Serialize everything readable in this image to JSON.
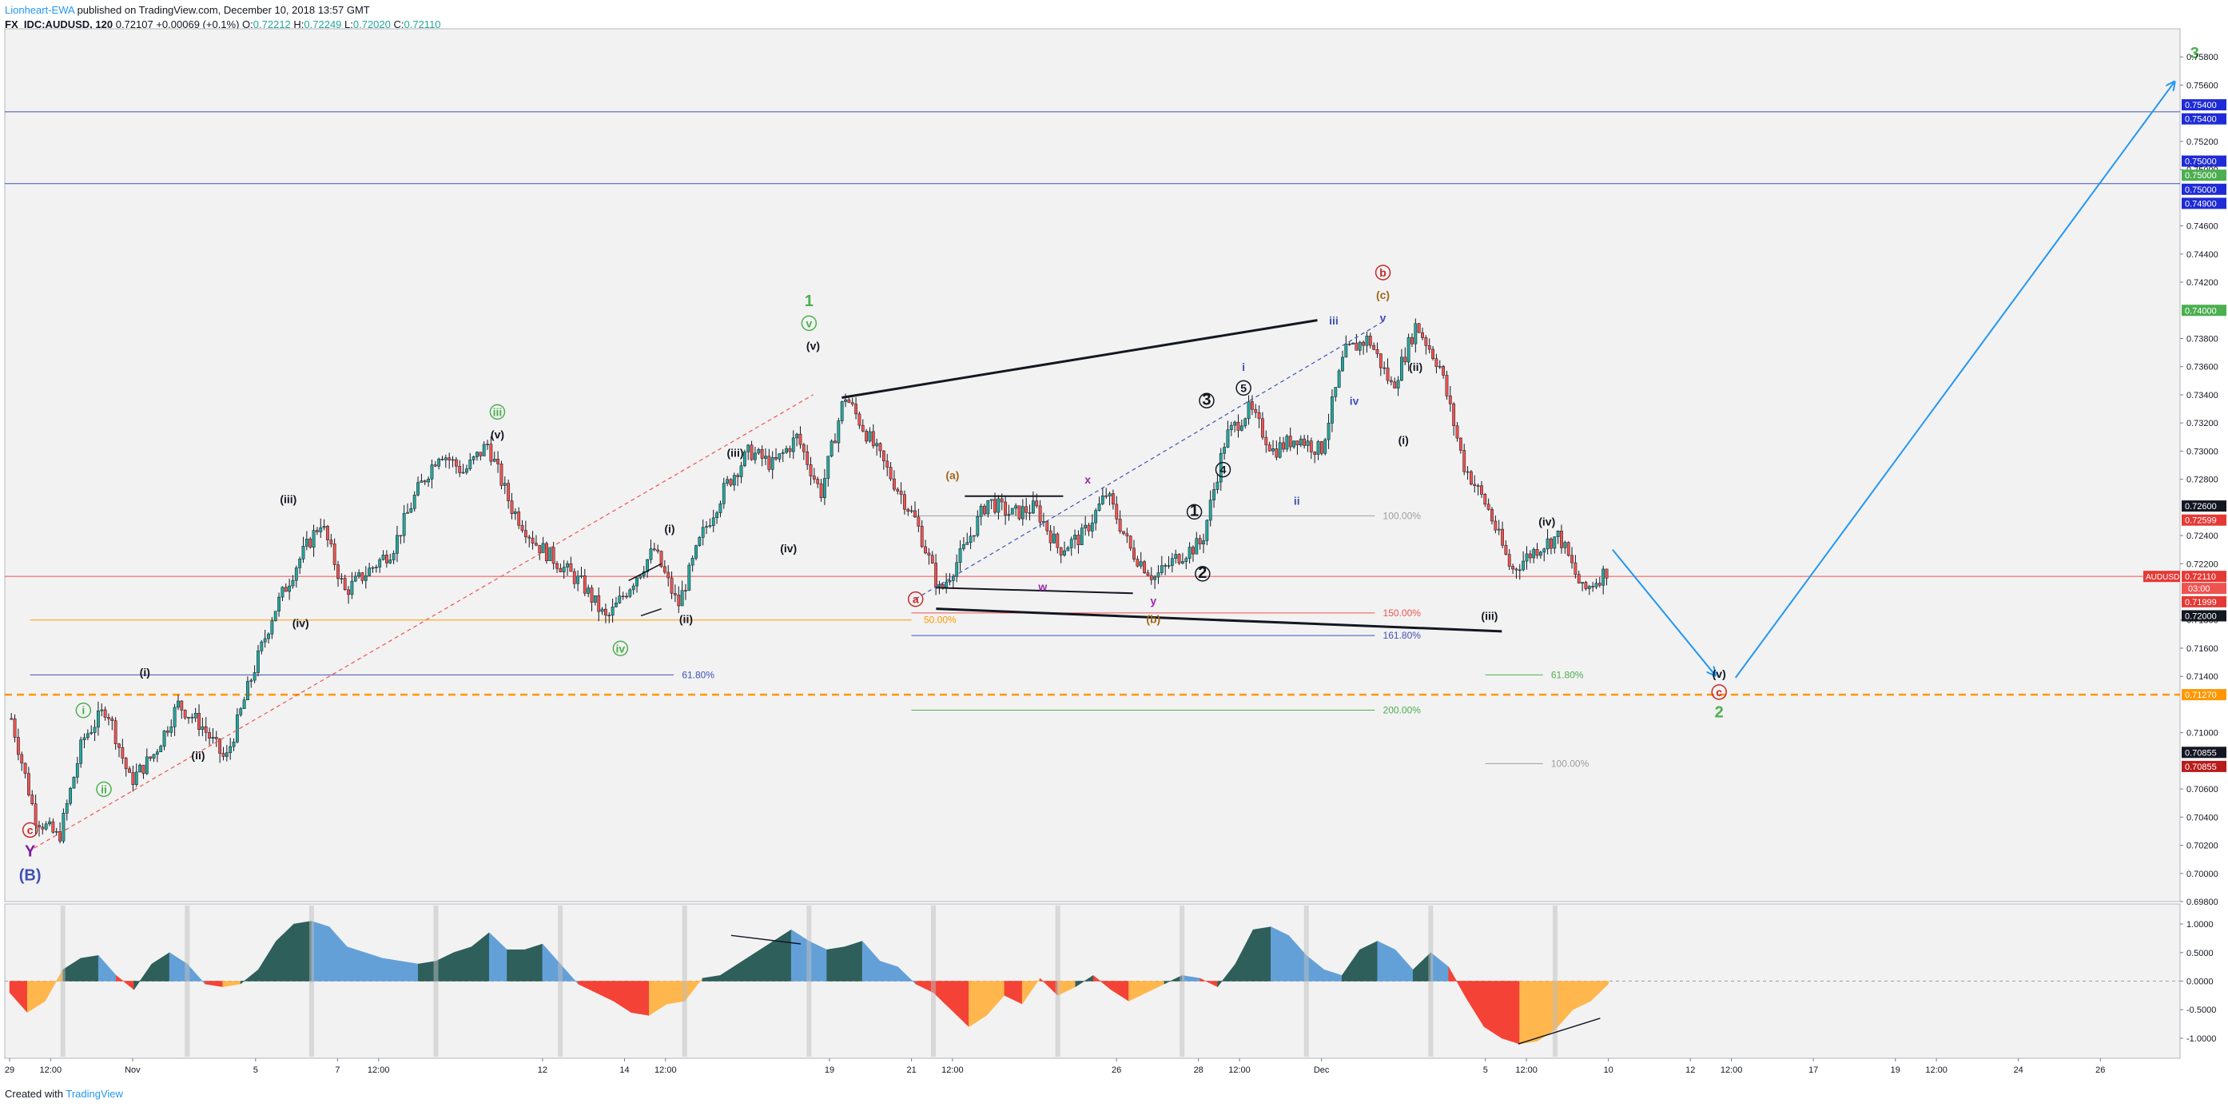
{
  "header": {
    "author": "Lionheart-EWA",
    "published": "published on TradingView.com, December 10, 2018 13:57 GMT",
    "symbol": "FX_IDC:AUDUSD, 120",
    "price": "0.72107",
    "change": "+0.00069 (+0.1%)",
    "o_label": "O:",
    "o": "0.72212",
    "h_label": "H:",
    "h": "0.72249",
    "l_label": "L:",
    "l": "0.72020",
    "c_label": "C:",
    "c": "0.72110"
  },
  "footer": {
    "created": "Created with",
    "brand": "TradingView"
  },
  "colors": {
    "up": "#26a69a",
    "down": "#ef5350",
    "candle": "#131722",
    "bg": "#f2f2f2",
    "orange": "#ff9800",
    "blue": "#3f51b5",
    "green": "#4caf50"
  },
  "chart_data": [
    {
      "type": "candlestick",
      "title": "",
      "y_ticks": [
        "0.75800",
        "0.75600",
        "0.75200",
        "0.75000",
        "0.74600",
        "0.74400",
        "0.74200",
        "0.73800",
        "0.73600",
        "0.73400",
        "0.73200",
        "0.73000",
        "0.72800",
        "0.72400",
        "0.72200",
        "0.71800",
        "0.71600",
        "0.71400",
        "0.71000",
        "0.70600",
        "0.70400",
        "0.70200",
        "0.70000",
        "0.69800"
      ],
      "ylim": [
        0.698,
        0.76
      ],
      "x_ticks": [
        "29",
        "12:00",
        "Nov",
        "5",
        "7",
        "12:00",
        "12",
        "14",
        "12:00",
        "19",
        "21",
        "12:00",
        "26",
        "28",
        "12:00",
        "Dec",
        "5",
        "12:00",
        "10",
        "12",
        "12:00",
        "17",
        "19",
        "12:00",
        "24",
        "26"
      ],
      "x_tick_days": [
        0,
        1,
        3,
        6,
        8,
        9,
        13,
        15,
        16,
        20,
        22,
        23,
        27,
        29,
        30,
        32,
        36,
        37,
        39,
        41,
        42,
        44,
        46,
        47,
        49,
        51
      ],
      "data_days": 39,
      "price_path": [
        0.711,
        0.704,
        0.7025,
        0.7095,
        0.7118,
        0.7065,
        0.7085,
        0.712,
        0.7105,
        0.708,
        0.7135,
        0.7185,
        0.722,
        0.725,
        0.72,
        0.7215,
        0.723,
        0.727,
        0.73,
        0.7285,
        0.7305,
        0.726,
        0.7235,
        0.722,
        0.7205,
        0.718,
        0.7205,
        0.723,
        0.719,
        0.724,
        0.7275,
        0.73,
        0.729,
        0.731,
        0.727,
        0.734,
        0.731,
        0.728,
        0.725,
        0.72,
        0.723,
        0.7265,
        0.7255,
        0.726,
        0.723,
        0.724,
        0.727,
        0.723,
        0.721,
        0.7225,
        0.7235,
        0.731,
        0.733,
        0.73,
        0.731,
        0.73,
        0.737,
        0.738,
        0.7345,
        0.739,
        0.736,
        0.729,
        0.726,
        0.7215,
        0.723,
        0.724,
        0.72,
        0.7215
      ],
      "last_price": "0.72110",
      "symbol_tag": "AUDUSD",
      "countdown": "03:00",
      "price_tags": [
        {
          "text": "0.75400",
          "price": 0.7546,
          "color": "#1f2bd6"
        },
        {
          "text": "0.75400",
          "price": 0.7536,
          "color": "#1f2bd6"
        },
        {
          "text": "0.75000",
          "price": 0.7506,
          "color": "#1f2bd6"
        },
        {
          "text": "0.75000",
          "price": 0.7496,
          "color": "#4caf50"
        },
        {
          "text": "0.75000",
          "price": 0.7486,
          "color": "#1f2bd6"
        },
        {
          "text": "0.74900",
          "price": 0.7476,
          "color": "#1f2bd6"
        },
        {
          "text": "0.74000",
          "price": 0.74,
          "color": "#4caf50"
        },
        {
          "text": "0.72600",
          "price": 0.7261,
          "color": "#131722"
        },
        {
          "text": "0.72599",
          "price": 0.7251,
          "color": "#e53935"
        },
        {
          "text": "0.72110",
          "price": 0.7211,
          "color": "#e53935"
        },
        {
          "text": "0.71999",
          "price": 0.7193,
          "color": "#e53935"
        },
        {
          "text": "0.72000",
          "price": 0.7183,
          "color": "#131722"
        },
        {
          "text": "0.71270",
          "price": 0.7127,
          "color": "#ff9800"
        },
        {
          "text": "0.70855",
          "price": 0.7086,
          "color": "#131722"
        },
        {
          "text": "0.70855",
          "price": 0.7076,
          "color": "#b71c1c"
        }
      ],
      "hlines": [
        {
          "price": 0.7541,
          "color": "#3f51b5"
        },
        {
          "price": 0.749,
          "color": "#3f51b5"
        },
        {
          "price": 0.7211,
          "color": "#ef5350"
        }
      ],
      "target_line": {
        "price": 0.7127,
        "color": "#ff9800"
      },
      "fib_levels": [
        {
          "label": "50.00%",
          "price": 0.718,
          "x0": 0.5,
          "x1": 22.0,
          "lx": 22.3,
          "color": "#ff9800"
        },
        {
          "label": "61.80%",
          "price": 0.7141,
          "x0": 0.5,
          "x1": 16.2,
          "lx": 16.4,
          "color": "#3f51b5"
        },
        {
          "label": "100.00%",
          "price": 0.7254,
          "x0": 22.0,
          "x1": 33.3,
          "lx": 33.5,
          "color": "#9e9e9e"
        },
        {
          "label": "150.00%",
          "price": 0.7185,
          "x0": 22.0,
          "x1": 33.3,
          "lx": 33.5,
          "color": "#ef5350"
        },
        {
          "label": "161.80%",
          "price": 0.7169,
          "x0": 22.0,
          "x1": 33.3,
          "lx": 33.5,
          "color": "#3f51b5"
        },
        {
          "label": "200.00%",
          "price": 0.7116,
          "x0": 22.0,
          "x1": 33.3,
          "lx": 33.5,
          "color": "#4caf50"
        },
        {
          "label": "61.80%",
          "price": 0.7141,
          "x0": 36.0,
          "x1": 37.4,
          "lx": 37.6,
          "color": "#4caf50"
        },
        {
          "label": "100.00%",
          "price": 0.7078,
          "x0": 36.0,
          "x1": 37.4,
          "lx": 37.6,
          "color": "#9e9e9e"
        }
      ],
      "wave_labels": [
        {
          "t": "c",
          "d": 0.5,
          "p": 0.7028,
          "c": "#c62828",
          "circle": true
        },
        {
          "t": "Y",
          "d": 0.5,
          "p": 0.7012,
          "c": "#7b1fa2"
        },
        {
          "t": "(B)",
          "d": 0.5,
          "p": 0.6995,
          "c": "#3f51b5"
        },
        {
          "t": "i",
          "d": 1.8,
          "p": 0.7113,
          "c": "#4caf50",
          "circle": true
        },
        {
          "t": "ii",
          "d": 2.3,
          "p": 0.7057,
          "c": "#4caf50",
          "circle": true
        },
        {
          "t": "(i)",
          "d": 3.3,
          "p": 0.714,
          "c": "#131722"
        },
        {
          "t": "(ii)",
          "d": 4.6,
          "p": 0.7081,
          "c": "#131722"
        },
        {
          "t": "(iii)",
          "d": 6.8,
          "p": 0.7263,
          "c": "#131722"
        },
        {
          "t": "(iv)",
          "d": 7.1,
          "p": 0.7175,
          "c": "#131722"
        },
        {
          "t": "iii",
          "d": 11.9,
          "p": 0.7325,
          "c": "#4caf50",
          "circle": true
        },
        {
          "t": "(v)",
          "d": 11.9,
          "p": 0.7309,
          "c": "#131722"
        },
        {
          "t": "(i)",
          "d": 16.1,
          "p": 0.7242,
          "c": "#131722"
        },
        {
          "t": "(ii)",
          "d": 16.5,
          "p": 0.7178,
          "c": "#131722"
        },
        {
          "t": "iv",
          "d": 14.9,
          "p": 0.7157,
          "c": "#4caf50",
          "circle": true
        },
        {
          "t": "(iii)",
          "d": 17.7,
          "p": 0.7296,
          "c": "#131722"
        },
        {
          "t": "(iv)",
          "d": 19.0,
          "p": 0.7228,
          "c": "#131722"
        },
        {
          "t": "1",
          "d": 19.5,
          "p": 0.7403,
          "c": "#4caf50"
        },
        {
          "t": "v",
          "d": 19.5,
          "p": 0.7388,
          "c": "#4caf50",
          "circle": true
        },
        {
          "t": "(v)",
          "d": 19.6,
          "p": 0.7372,
          "c": "#131722"
        },
        {
          "t": "(a)",
          "d": 23.0,
          "p": 0.728,
          "c": "#a1661a"
        },
        {
          "t": "a",
          "d": 22.1,
          "p": 0.7192,
          "c": "#c62828",
          "circle": true
        },
        {
          "t": "w",
          "d": 25.2,
          "p": 0.7201,
          "c": "#9c27b0"
        },
        {
          "t": "x",
          "d": 26.3,
          "p": 0.7277,
          "c": "#9c27b0"
        },
        {
          "t": "y",
          "d": 27.9,
          "p": 0.7191,
          "c": "#9c27b0"
        },
        {
          "t": "(b)",
          "d": 27.9,
          "p": 0.7178,
          "c": "#a1661a"
        },
        {
          "t": "1",
          "d": 28.9,
          "p": 0.7254,
          "c": "#131722",
          "circle": true
        },
        {
          "t": "2",
          "d": 29.1,
          "p": 0.721,
          "c": "#131722",
          "circle": true
        },
        {
          "t": "3",
          "d": 29.2,
          "p": 0.7333,
          "c": "#131722",
          "circle": true
        },
        {
          "t": "4",
          "d": 29.6,
          "p": 0.7284,
          "c": "#131722",
          "circle": true
        },
        {
          "t": "5",
          "d": 30.1,
          "p": 0.7342,
          "c": "#131722",
          "circle": true
        },
        {
          "t": "i",
          "d": 30.1,
          "p": 0.7357,
          "c": "#3f51b5"
        },
        {
          "t": "ii",
          "d": 31.4,
          "p": 0.7262,
          "c": "#3f51b5"
        },
        {
          "t": "iii",
          "d": 32.3,
          "p": 0.739,
          "c": "#3f51b5"
        },
        {
          "t": "iv",
          "d": 32.8,
          "p": 0.7333,
          "c": "#3f51b5"
        },
        {
          "t": "v",
          "d": 33.5,
          "p": 0.7392,
          "c": "#3f51b5"
        },
        {
          "t": "(c)",
          "d": 33.5,
          "p": 0.7408,
          "c": "#a1661a"
        },
        {
          "t": "b",
          "d": 33.5,
          "p": 0.7424,
          "c": "#c62828",
          "circle": true
        },
        {
          "t": "(ii)",
          "d": 34.3,
          "p": 0.7357,
          "c": "#131722"
        },
        {
          "t": "(i)",
          "d": 34.0,
          "p": 0.7305,
          "c": "#131722"
        },
        {
          "t": "(iii)",
          "d": 36.1,
          "p": 0.718,
          "c": "#131722"
        },
        {
          "t": "(iv)",
          "d": 37.5,
          "p": 0.7247,
          "c": "#131722"
        },
        {
          "t": "(v)",
          "d": 41.7,
          "p": 0.7139,
          "c": "#131722"
        },
        {
          "t": "c",
          "d": 41.7,
          "p": 0.7126,
          "c": "#c62828",
          "circle": true
        },
        {
          "t": "2",
          "d": 41.7,
          "p": 0.7111,
          "c": "#4caf50"
        },
        {
          "t": "3",
          "d": 53.3,
          "p": 0.7579,
          "c": "#4caf50"
        }
      ],
      "trendlines": [
        {
          "d0": 20.3,
          "p0": 0.7338,
          "d1": 31.9,
          "p1": 0.7393,
          "c": "#131722",
          "w": 3
        },
        {
          "d0": 22.6,
          "p0": 0.7188,
          "d1": 36.4,
          "p1": 0.7172,
          "c": "#131722",
          "w": 3
        },
        {
          "d0": 22.6,
          "p0": 0.7203,
          "d1": 27.4,
          "p1": 0.7199,
          "c": "#131722",
          "w": 2
        },
        {
          "d0": 23.3,
          "p0": 0.7268,
          "d1": 25.7,
          "p1": 0.7268,
          "c": "#131722",
          "w": 2
        },
        {
          "d0": 15.1,
          "p0": 0.7208,
          "d1": 15.9,
          "p1": 0.722,
          "c": "#131722",
          "w": 1.5
        },
        {
          "d0": 15.4,
          "p0": 0.7183,
          "d1": 15.9,
          "p1": 0.7188,
          "c": "#131722",
          "w": 1.5
        }
      ],
      "dashed_lines": [
        {
          "d0": 0.6,
          "p0": 0.7018,
          "d1": 19.6,
          "p1": 0.734,
          "c": "#ef5350"
        },
        {
          "d0": 22.1,
          "p0": 0.7195,
          "d1": 33.5,
          "p1": 0.7392,
          "c": "#3f51b5"
        }
      ],
      "projection": [
        {
          "d0": 39.1,
          "p0": 0.723,
          "d1": 41.6,
          "p1": 0.7141,
          "c": "#2196f3"
        },
        {
          "d0": 42.1,
          "p0": 0.7139,
          "d1": 52.8,
          "p1": 0.7562,
          "c": "#2196f3"
        }
      ]
    },
    {
      "type": "area",
      "title": "",
      "y_ticks": [
        "1.0000",
        "0.5000",
        "0.0000",
        "-0.5000",
        "-1.0000"
      ],
      "ylim": [
        -1.35,
        1.35
      ],
      "values": [
        -0.2,
        -0.55,
        -0.35,
        0.2,
        0.4,
        0.45,
        0.1,
        -0.15,
        0.3,
        0.5,
        0.3,
        -0.05,
        -0.1,
        -0.05,
        0.2,
        0.7,
        1.0,
        1.05,
        0.95,
        0.6,
        0.5,
        0.4,
        0.35,
        0.3,
        0.35,
        0.5,
        0.6,
        0.85,
        0.55,
        0.55,
        0.65,
        0.3,
        -0.05,
        -0.2,
        -0.35,
        -0.55,
        -0.6,
        -0.4,
        -0.35,
        0.05,
        0.1,
        0.3,
        0.5,
        0.7,
        0.9,
        0.7,
        0.55,
        0.6,
        0.7,
        0.35,
        0.25,
        -0.05,
        -0.2,
        -0.5,
        -0.8,
        -0.6,
        -0.25,
        -0.4,
        0.05,
        -0.25,
        -0.1,
        0.1,
        -0.15,
        -0.35,
        -0.2,
        -0.05,
        0.1,
        0.05,
        -0.1,
        0.3,
        0.9,
        0.95,
        0.8,
        0.45,
        0.2,
        0.1,
        0.55,
        0.7,
        0.55,
        0.2,
        0.5,
        0.25,
        -0.3,
        -0.8,
        -1.0,
        -1.1,
        -1.05,
        -0.85,
        -0.5,
        -0.35,
        -0.05
      ],
      "color_up": "#2e5f5a",
      "color_up_light": "#64a0d8",
      "color_down": "#f44336",
      "color_down_light": "#ffb74d"
    }
  ]
}
